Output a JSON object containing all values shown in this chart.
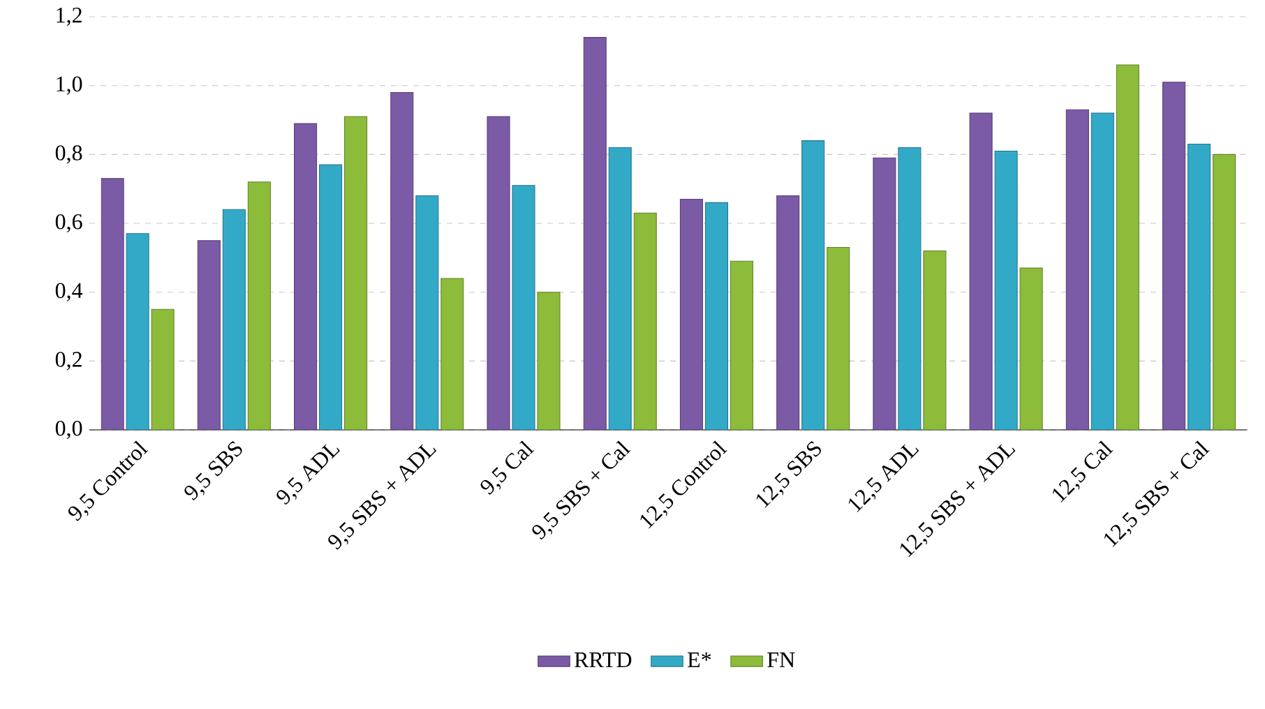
{
  "chart_data": {
    "type": "bar",
    "categories": [
      "9,5 Control",
      "9,5 SBS",
      "9,5 ADL",
      "9,5 SBS + ADL",
      "9,5 Cal",
      "9,5 SBS + Cal",
      "12,5 Control",
      "12,5 SBS",
      "12,5 ADL",
      "12,5 SBS + ADL",
      "12,5 Cal",
      "12,5 SBS + Cal"
    ],
    "series": [
      {
        "name": "RRTD",
        "color": "#7b5aa6",
        "values": [
          0.73,
          0.55,
          0.89,
          0.98,
          0.91,
          1.14,
          0.67,
          0.68,
          0.79,
          0.92,
          0.93,
          1.01
        ]
      },
      {
        "name": "E*",
        "color": "#33a9c8",
        "values": [
          0.57,
          0.64,
          0.77,
          0.68,
          0.71,
          0.82,
          0.66,
          0.84,
          0.82,
          0.81,
          0.92,
          0.83
        ]
      },
      {
        "name": "FN",
        "color": "#8dbb3a",
        "values": [
          0.35,
          0.72,
          0.91,
          0.44,
          0.4,
          0.63,
          0.49,
          0.53,
          0.52,
          0.47,
          1.06,
          0.8
        ]
      }
    ],
    "ylim": [
      0,
      1.2
    ],
    "yticks": [
      {
        "value": 0,
        "label": "0,0"
      },
      {
        "value": 0.2,
        "label": "0,2"
      },
      {
        "value": 0.4,
        "label": "0,4"
      },
      {
        "value": 0.6,
        "label": "0,6"
      },
      {
        "value": 0.8,
        "label": "0,8"
      },
      {
        "value": 1.0,
        "label": "1,0"
      },
      {
        "value": 1.2,
        "label": "1,2"
      }
    ],
    "grid": "y",
    "legend": "bottom"
  }
}
